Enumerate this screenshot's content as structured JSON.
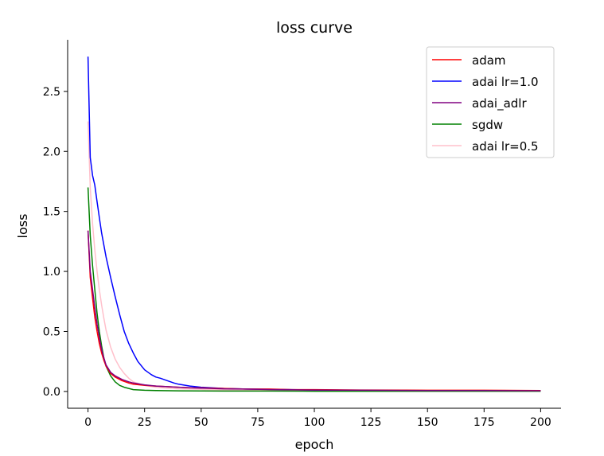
{
  "chart_data": {
    "type": "line",
    "title": "loss curve",
    "xlabel": "epoch",
    "ylabel": "loss",
    "xlim": [
      -9,
      209
    ],
    "ylim": [
      -0.14,
      2.93
    ],
    "xticks": [
      0,
      25,
      50,
      75,
      100,
      125,
      150,
      175,
      200
    ],
    "yticks": [
      0.0,
      0.5,
      1.0,
      1.5,
      2.0,
      2.5
    ],
    "xtick_labels": [
      "0",
      "25",
      "50",
      "75",
      "100",
      "125",
      "150",
      "175",
      "200"
    ],
    "ytick_labels": [
      "0.0",
      "0.5",
      "1.0",
      "1.5",
      "2.0",
      "2.5"
    ],
    "grid": false,
    "legend_position": "top-right",
    "series": [
      {
        "name": "adam",
        "color": "#ff0000",
        "x": [
          0,
          1,
          2,
          3,
          4,
          5,
          6,
          7,
          8,
          10,
          12,
          15,
          18,
          20,
          25,
          30,
          35,
          40,
          45,
          50,
          60,
          70,
          80,
          90,
          100,
          120,
          150,
          175,
          200
        ],
        "y": [
          1.34,
          0.95,
          0.78,
          0.62,
          0.5,
          0.4,
          0.32,
          0.26,
          0.21,
          0.15,
          0.12,
          0.09,
          0.07,
          0.06,
          0.05,
          0.045,
          0.04,
          0.035,
          0.03,
          0.03,
          0.025,
          0.02,
          0.02,
          0.015,
          0.015,
          0.012,
          0.01,
          0.01,
          0.008
        ]
      },
      {
        "name": "adai lr=1.0",
        "color": "#0000ff",
        "x": [
          0,
          1,
          2,
          3,
          4,
          5,
          6,
          8,
          10,
          12,
          14,
          16,
          18,
          20,
          22,
          25,
          28,
          30,
          32,
          35,
          38,
          40,
          45,
          50,
          60,
          70,
          80,
          90,
          100,
          125,
          150,
          175,
          200
        ],
        "y": [
          2.79,
          1.95,
          1.8,
          1.72,
          1.58,
          1.45,
          1.32,
          1.12,
          0.95,
          0.79,
          0.64,
          0.5,
          0.4,
          0.32,
          0.25,
          0.18,
          0.14,
          0.12,
          0.11,
          0.09,
          0.07,
          0.06,
          0.045,
          0.035,
          0.025,
          0.02,
          0.018,
          0.015,
          0.012,
          0.01,
          0.008,
          0.008,
          0.006
        ]
      },
      {
        "name": "adai_adlr",
        "color": "#800080",
        "x": [
          0,
          1,
          2,
          3,
          4,
          5,
          6,
          7,
          8,
          10,
          12,
          15,
          18,
          20,
          25,
          30,
          35,
          40,
          50,
          60,
          70,
          80,
          90,
          100,
          125,
          150,
          175,
          200
        ],
        "y": [
          1.34,
          1.0,
          0.85,
          0.7,
          0.56,
          0.45,
          0.35,
          0.28,
          0.22,
          0.16,
          0.13,
          0.1,
          0.08,
          0.07,
          0.055,
          0.045,
          0.04,
          0.035,
          0.028,
          0.022,
          0.02,
          0.016,
          0.014,
          0.012,
          0.01,
          0.008,
          0.008,
          0.006
        ]
      },
      {
        "name": "sgdw",
        "color": "#008000",
        "x": [
          0,
          1,
          2,
          3,
          4,
          5,
          6,
          7,
          8,
          10,
          12,
          14,
          16,
          18,
          20,
          25,
          30,
          40,
          50,
          60,
          80,
          100,
          125,
          150,
          175,
          200
        ],
        "y": [
          1.7,
          1.3,
          1.05,
          0.85,
          0.65,
          0.5,
          0.38,
          0.28,
          0.21,
          0.13,
          0.08,
          0.05,
          0.035,
          0.025,
          0.015,
          0.01,
          0.007,
          0.005,
          0.004,
          0.003,
          0.003,
          0.002,
          0.002,
          0.002,
          0.002,
          0.002
        ]
      },
      {
        "name": "adai lr=0.5",
        "color": "#ffc0cb",
        "x": [
          0,
          1,
          2,
          3,
          4,
          5,
          6,
          7,
          8,
          10,
          12,
          14,
          16,
          18,
          20,
          25,
          30,
          35,
          40,
          50,
          60,
          70,
          80,
          100,
          125,
          150,
          175,
          200
        ],
        "y": [
          2.25,
          1.7,
          1.4,
          1.18,
          1.0,
          0.85,
          0.72,
          0.61,
          0.51,
          0.37,
          0.27,
          0.2,
          0.15,
          0.11,
          0.08,
          0.05,
          0.035,
          0.028,
          0.022,
          0.017,
          0.014,
          0.012,
          0.01,
          0.008,
          0.006,
          0.005,
          0.005,
          0.004
        ]
      }
    ]
  }
}
